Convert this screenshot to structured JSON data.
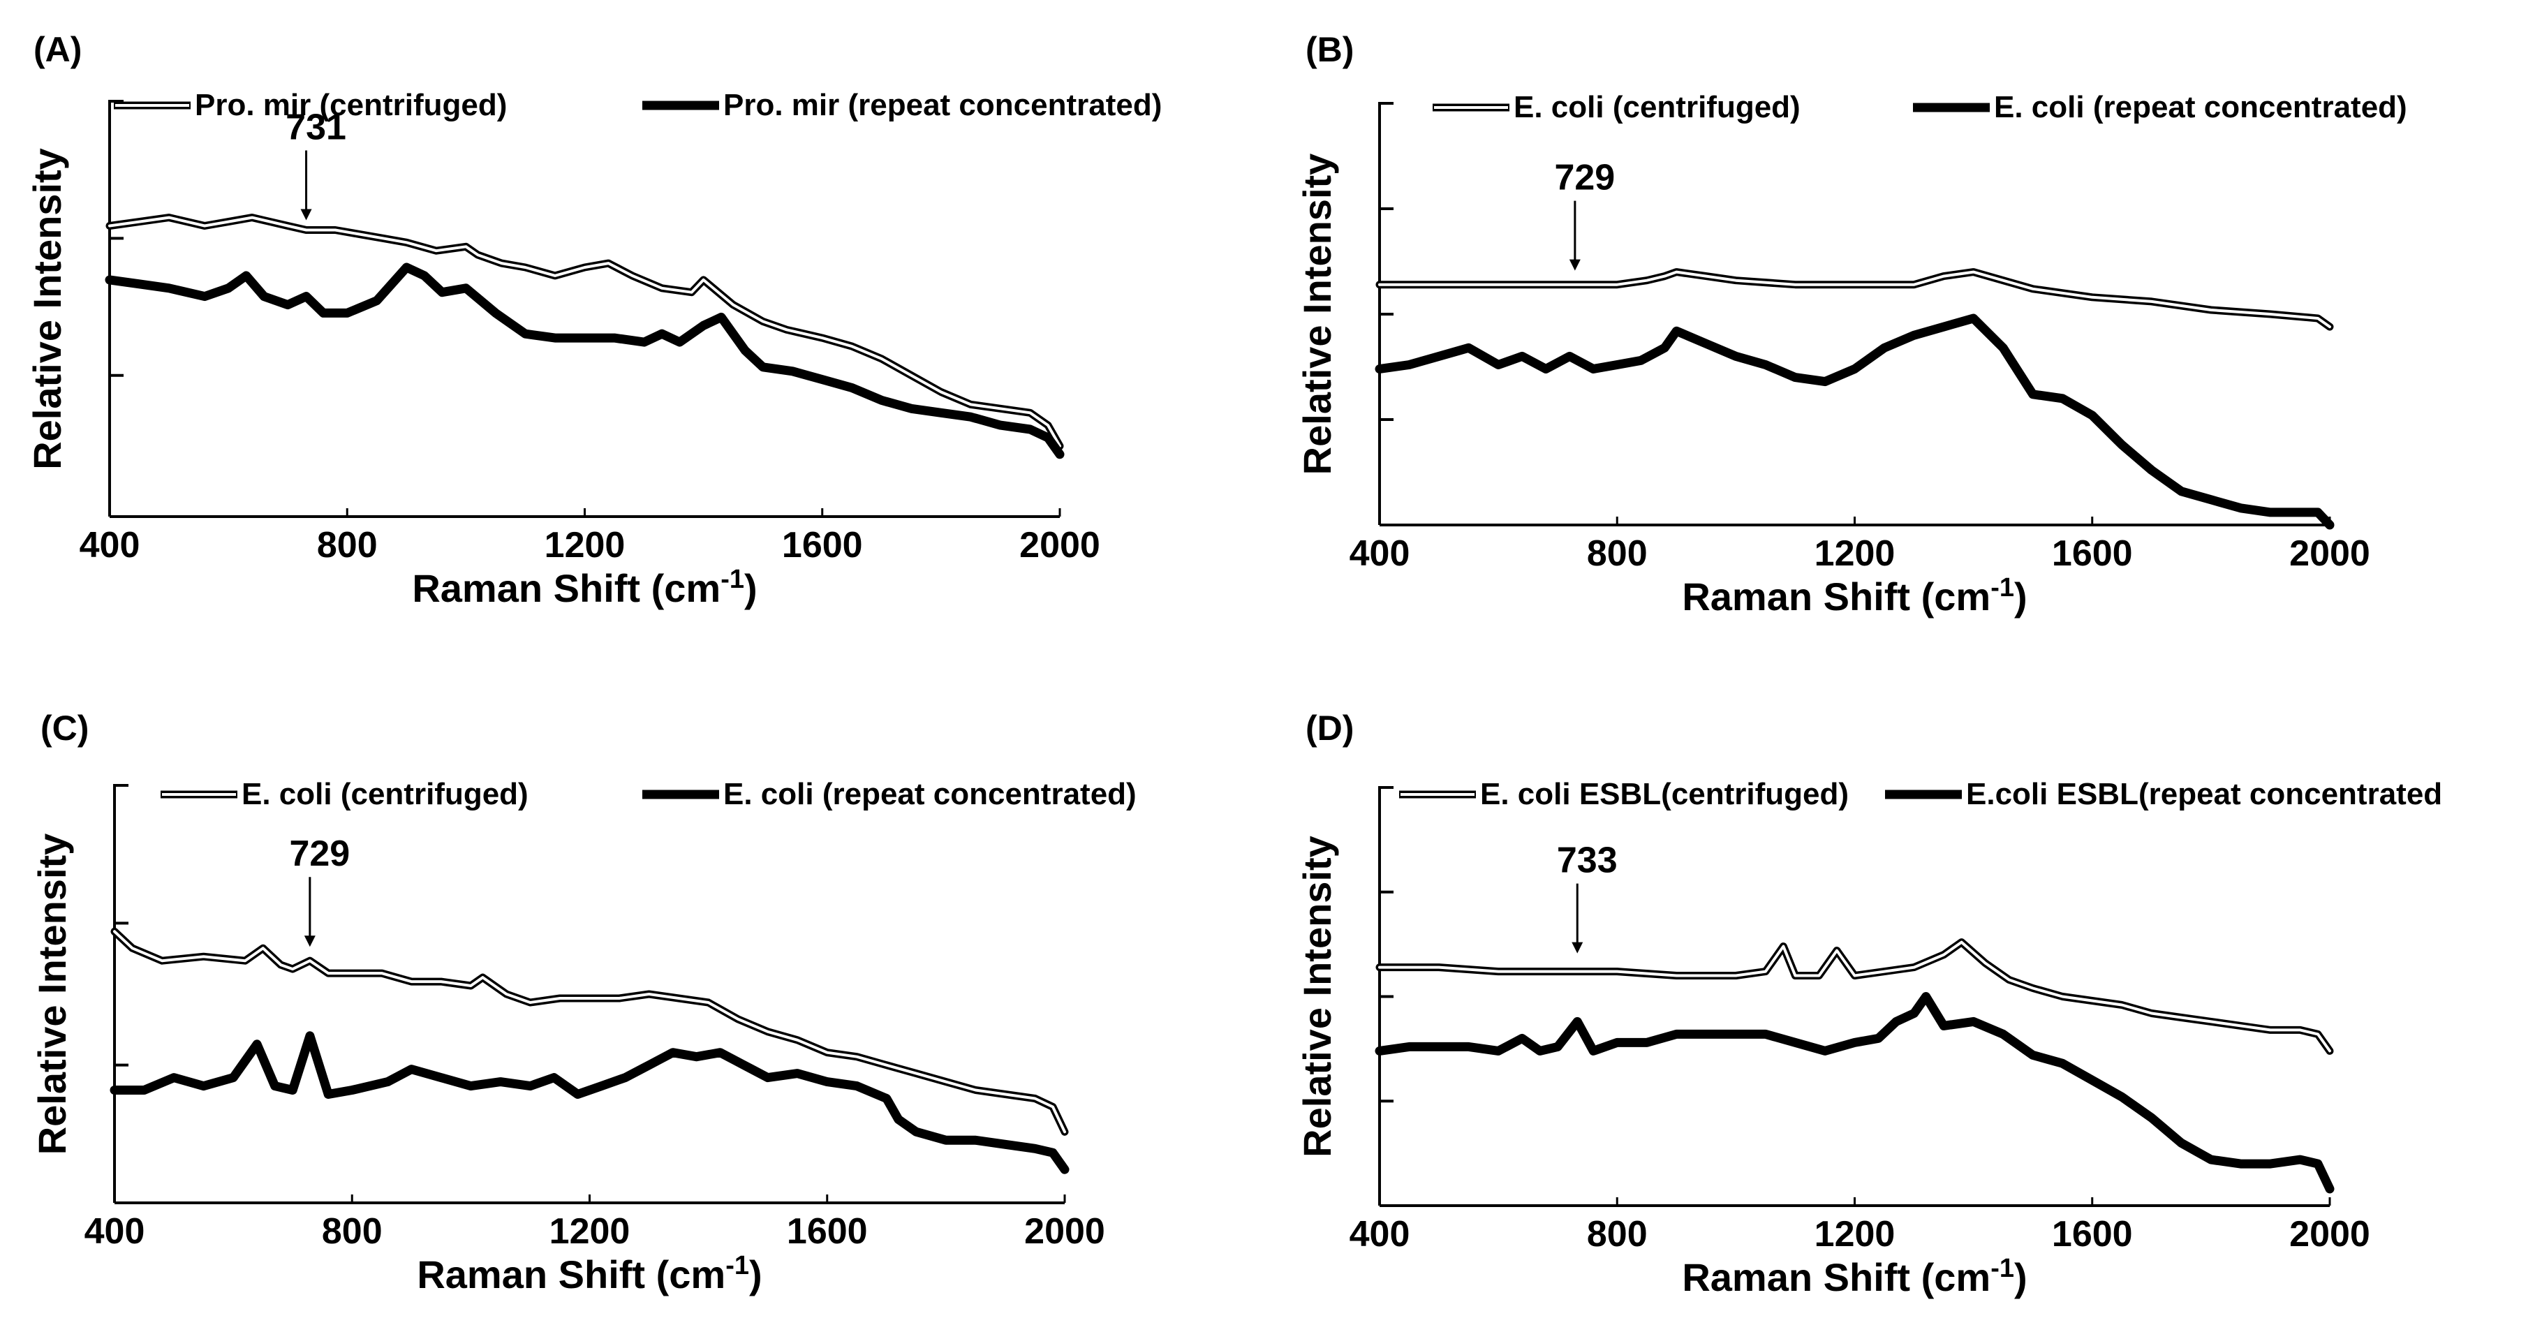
{
  "chart_data": [
    {
      "type": "line",
      "panel_label": "(A)",
      "xlabel": "Raman Shift (cm",
      "xlabel_sup": "-1",
      "xlabel_end": ")",
      "ylabel": "Relative Intensity",
      "xlim": [
        400,
        2000
      ],
      "ylim": [
        0,
        1
      ],
      "x_ticks": [
        400,
        800,
        1200,
        1600,
        2000
      ],
      "x_tick_labels": [
        "400",
        "800",
        "1200",
        "1600",
        "2000"
      ],
      "y_ticks": [
        0.34,
        0.67,
        1.0
      ],
      "legend_position": "top",
      "annotation": {
        "text": "731",
        "x": 731,
        "y": 0.7
      },
      "series": [
        {
          "name": "Pro. mir (centrifuged)",
          "style": "double-line",
          "x": [
            400,
            450,
            500,
            560,
            600,
            640,
            700,
            731,
            780,
            820,
            860,
            900,
            950,
            1000,
            1020,
            1060,
            1100,
            1150,
            1200,
            1240,
            1280,
            1330,
            1380,
            1400,
            1450,
            1500,
            1540,
            1600,
            1650,
            1700,
            1750,
            1800,
            1850,
            1900,
            1950,
            1980,
            2000
          ],
          "y": [
            0.7,
            0.71,
            0.72,
            0.7,
            0.71,
            0.72,
            0.7,
            0.69,
            0.69,
            0.68,
            0.67,
            0.66,
            0.64,
            0.65,
            0.63,
            0.61,
            0.6,
            0.58,
            0.6,
            0.61,
            0.58,
            0.55,
            0.54,
            0.57,
            0.51,
            0.47,
            0.45,
            0.43,
            0.41,
            0.38,
            0.34,
            0.3,
            0.27,
            0.26,
            0.25,
            0.22,
            0.17
          ]
        },
        {
          "name": "Pro. mir (repeat concentrated)",
          "style": "thick",
          "x": [
            400,
            450,
            500,
            560,
            600,
            630,
            660,
            700,
            731,
            760,
            800,
            850,
            900,
            930,
            960,
            1000,
            1050,
            1100,
            1150,
            1200,
            1250,
            1300,
            1330,
            1360,
            1400,
            1430,
            1470,
            1500,
            1550,
            1600,
            1650,
            1700,
            1750,
            1800,
            1850,
            1900,
            1950,
            1980,
            2000
          ],
          "y": [
            0.57,
            0.56,
            0.55,
            0.53,
            0.55,
            0.58,
            0.53,
            0.51,
            0.53,
            0.49,
            0.49,
            0.52,
            0.6,
            0.58,
            0.54,
            0.55,
            0.49,
            0.44,
            0.43,
            0.43,
            0.43,
            0.42,
            0.44,
            0.42,
            0.46,
            0.48,
            0.4,
            0.36,
            0.35,
            0.33,
            0.31,
            0.28,
            0.26,
            0.25,
            0.24,
            0.22,
            0.21,
            0.19,
            0.15
          ]
        }
      ]
    },
    {
      "type": "line",
      "panel_label": "(B)",
      "xlabel": "Raman Shift (cm",
      "xlabel_sup": "-1",
      "xlabel_end": ")",
      "ylabel": "Relative Intensity",
      "xlim": [
        400,
        2000
      ],
      "ylim": [
        0,
        1
      ],
      "x_ticks": [
        400,
        800,
        1200,
        1600,
        2000
      ],
      "x_tick_labels": [
        "400",
        "800",
        "1200",
        "1600",
        "2000"
      ],
      "y_ticks": [
        0.25,
        0.5,
        0.75,
        1.0
      ],
      "legend_position": "top",
      "annotation": {
        "text": "729",
        "x": 729,
        "y": 0.59
      },
      "series": [
        {
          "name": "E. coli (centrifuged)",
          "style": "double-line",
          "x": [
            400,
            500,
            600,
            700,
            729,
            800,
            850,
            880,
            900,
            950,
            1000,
            1100,
            1200,
            1300,
            1350,
            1400,
            1450,
            1500,
            1600,
            1700,
            1800,
            1900,
            1980,
            2000
          ],
          "y": [
            0.57,
            0.57,
            0.57,
            0.57,
            0.57,
            0.57,
            0.58,
            0.59,
            0.6,
            0.59,
            0.58,
            0.57,
            0.57,
            0.57,
            0.59,
            0.6,
            0.58,
            0.56,
            0.54,
            0.53,
            0.51,
            0.5,
            0.49,
            0.47
          ]
        },
        {
          "name": "E. coli (repeat concentrated)",
          "style": "thick",
          "x": [
            400,
            450,
            500,
            550,
            600,
            640,
            680,
            720,
            760,
            800,
            840,
            880,
            900,
            950,
            1000,
            1050,
            1100,
            1150,
            1200,
            1250,
            1300,
            1350,
            1400,
            1450,
            1500,
            1550,
            1600,
            1650,
            1700,
            1750,
            1800,
            1850,
            1900,
            1950,
            1980,
            2000
          ],
          "y": [
            0.37,
            0.38,
            0.4,
            0.42,
            0.38,
            0.4,
            0.37,
            0.4,
            0.37,
            0.38,
            0.39,
            0.42,
            0.46,
            0.43,
            0.4,
            0.38,
            0.35,
            0.34,
            0.37,
            0.42,
            0.45,
            0.47,
            0.49,
            0.42,
            0.31,
            0.3,
            0.26,
            0.19,
            0.13,
            0.08,
            0.06,
            0.04,
            0.03,
            0.03,
            0.03,
            0.0
          ]
        }
      ]
    },
    {
      "type": "line",
      "panel_label": "(C)",
      "xlabel": "Raman Shift (cm",
      "xlabel_sup": "-1",
      "xlabel_end": ")",
      "ylabel": "Relative Intensity",
      "xlim": [
        400,
        2000
      ],
      "ylim": [
        0,
        1
      ],
      "x_ticks": [
        400,
        800,
        1200,
        1600,
        2000
      ],
      "x_tick_labels": [
        "400",
        "800",
        "1200",
        "1600",
        "2000"
      ],
      "y_ticks": [
        0.33,
        0.67,
        1.0
      ],
      "legend_position": "top",
      "annotation": {
        "text": "729",
        "x": 729,
        "y": 0.6
      },
      "series": [
        {
          "name": "E. coli (centrifuged)",
          "style": "double-line",
          "x": [
            400,
            430,
            480,
            550,
            620,
            650,
            680,
            700,
            729,
            760,
            800,
            850,
            900,
            950,
            1000,
            1020,
            1060,
            1100,
            1150,
            1200,
            1250,
            1300,
            1350,
            1400,
            1450,
            1500,
            1550,
            1600,
            1650,
            1700,
            1750,
            1800,
            1850,
            1900,
            1950,
            1980,
            2000
          ],
          "y": [
            0.65,
            0.61,
            0.58,
            0.59,
            0.58,
            0.61,
            0.57,
            0.56,
            0.58,
            0.55,
            0.55,
            0.55,
            0.53,
            0.53,
            0.52,
            0.54,
            0.5,
            0.48,
            0.49,
            0.49,
            0.49,
            0.5,
            0.49,
            0.48,
            0.44,
            0.41,
            0.39,
            0.36,
            0.35,
            0.33,
            0.31,
            0.29,
            0.27,
            0.26,
            0.25,
            0.23,
            0.17
          ]
        },
        {
          "name": "E. coli (repeat concentrated)",
          "style": "thick",
          "x": [
            400,
            450,
            500,
            550,
            600,
            640,
            670,
            700,
            729,
            760,
            800,
            830,
            860,
            900,
            950,
            1000,
            1050,
            1100,
            1140,
            1180,
            1220,
            1260,
            1300,
            1340,
            1380,
            1420,
            1460,
            1500,
            1550,
            1600,
            1650,
            1700,
            1720,
            1750,
            1800,
            1850,
            1900,
            1950,
            1980,
            2000
          ],
          "y": [
            0.27,
            0.27,
            0.3,
            0.28,
            0.3,
            0.38,
            0.28,
            0.27,
            0.4,
            0.26,
            0.27,
            0.28,
            0.29,
            0.32,
            0.3,
            0.28,
            0.29,
            0.28,
            0.3,
            0.26,
            0.28,
            0.3,
            0.33,
            0.36,
            0.35,
            0.36,
            0.33,
            0.3,
            0.31,
            0.29,
            0.28,
            0.25,
            0.2,
            0.17,
            0.15,
            0.15,
            0.14,
            0.13,
            0.12,
            0.08
          ]
        }
      ]
    },
    {
      "type": "line",
      "panel_label": "(D)",
      "xlabel": "Raman Shift (cm",
      "xlabel_sup": "-1",
      "xlabel_end": ")",
      "ylabel": "Relative Intensity",
      "xlim": [
        400,
        2000
      ],
      "ylim": [
        0,
        1
      ],
      "x_ticks": [
        400,
        800,
        1200,
        1600,
        2000
      ],
      "x_tick_labels": [
        "400",
        "800",
        "1200",
        "1600",
        "2000"
      ],
      "y_ticks": [
        0.25,
        0.5,
        0.75,
        1.0
      ],
      "legend_position": "top",
      "annotation": {
        "text": "733",
        "x": 733,
        "y": 0.59
      },
      "series": [
        {
          "name": "E. coli ESBL(centrifuged)",
          "style": "double-line",
          "x": [
            400,
            500,
            600,
            700,
            733,
            800,
            900,
            1000,
            1050,
            1080,
            1100,
            1140,
            1170,
            1200,
            1250,
            1300,
            1350,
            1380,
            1420,
            1460,
            1500,
            1550,
            1600,
            1650,
            1700,
            1750,
            1800,
            1850,
            1900,
            1950,
            1980,
            2000
          ],
          "y": [
            0.57,
            0.57,
            0.56,
            0.56,
            0.56,
            0.56,
            0.55,
            0.55,
            0.56,
            0.62,
            0.55,
            0.55,
            0.61,
            0.55,
            0.56,
            0.57,
            0.6,
            0.63,
            0.58,
            0.54,
            0.52,
            0.5,
            0.49,
            0.48,
            0.46,
            0.45,
            0.44,
            0.43,
            0.42,
            0.42,
            0.41,
            0.37
          ]
        },
        {
          "name": "E.coli ESBL(repeat concentrated",
          "style": "thick",
          "x": [
            400,
            450,
            500,
            550,
            600,
            640,
            670,
            700,
            733,
            760,
            800,
            850,
            900,
            950,
            1000,
            1050,
            1100,
            1150,
            1200,
            1240,
            1270,
            1300,
            1320,
            1350,
            1400,
            1450,
            1500,
            1550,
            1600,
            1650,
            1700,
            1750,
            1800,
            1850,
            1900,
            1950,
            1980,
            2000
          ],
          "y": [
            0.37,
            0.38,
            0.38,
            0.38,
            0.37,
            0.4,
            0.37,
            0.38,
            0.44,
            0.37,
            0.39,
            0.39,
            0.41,
            0.41,
            0.41,
            0.41,
            0.39,
            0.37,
            0.39,
            0.4,
            0.44,
            0.46,
            0.5,
            0.43,
            0.44,
            0.41,
            0.36,
            0.34,
            0.3,
            0.26,
            0.21,
            0.15,
            0.11,
            0.1,
            0.1,
            0.11,
            0.1,
            0.04
          ]
        }
      ]
    }
  ]
}
